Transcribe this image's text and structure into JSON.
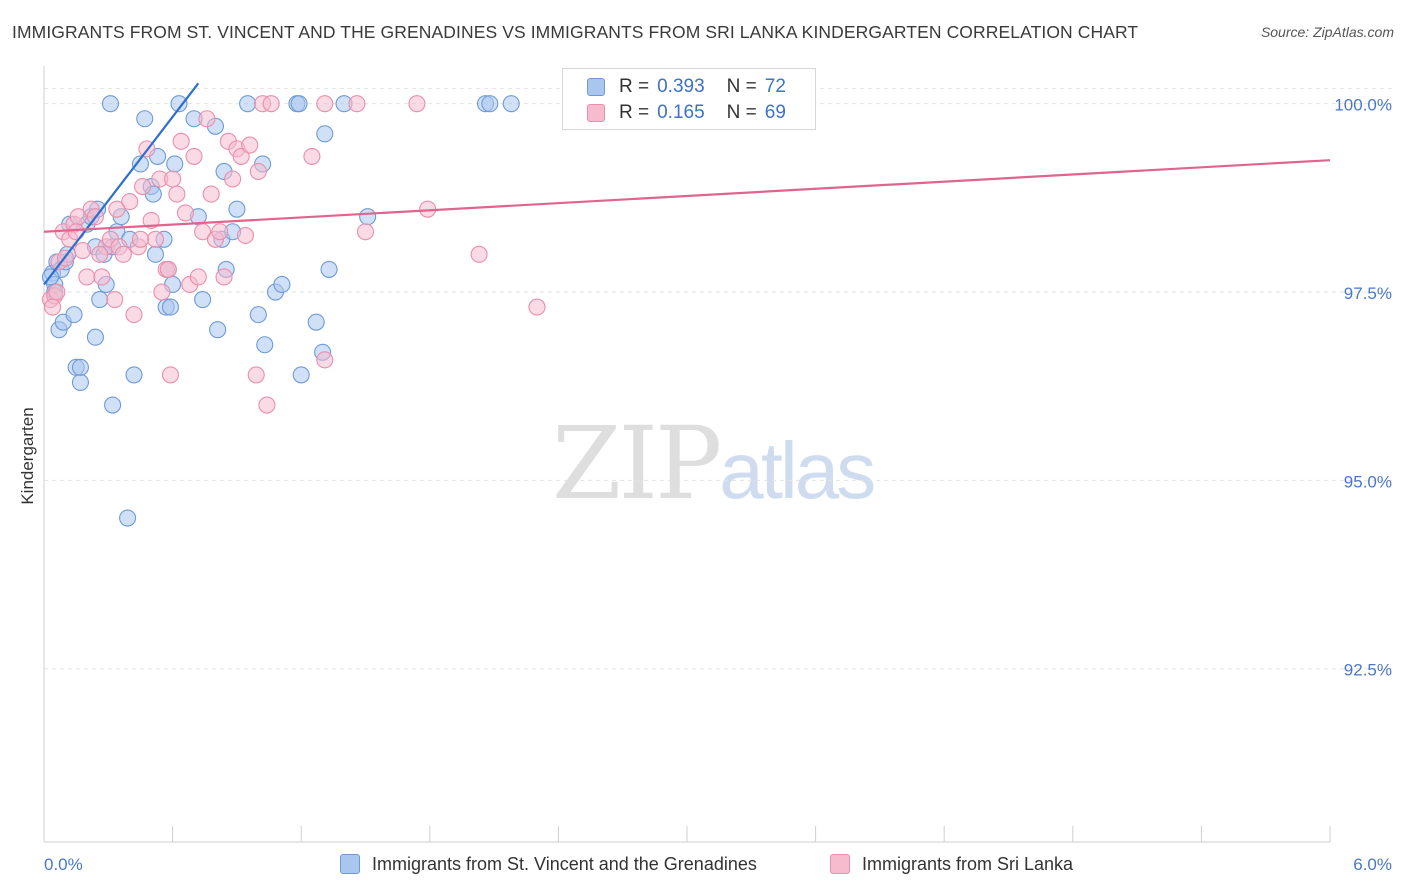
{
  "title": "IMMIGRANTS FROM ST. VINCENT AND THE GRENADINES VS IMMIGRANTS FROM SRI LANKA KINDERGARTEN CORRELATION CHART",
  "source": "Source: ZipAtlas.com",
  "watermark": {
    "zip": "ZIP",
    "atlas": "atlas"
  },
  "colors": {
    "blue_fill": "#a9c6ef",
    "blue_stroke": "#6f9ad8",
    "blue_line": "#2e6fcc",
    "pink_fill": "#f6bccd",
    "pink_stroke": "#e98fab",
    "pink_line": "#e0648d",
    "grid": "#e2e2e2",
    "axis_label": "#4a77c9"
  },
  "legend": {
    "rows": [
      {
        "r_label": "R =",
        "r_value": "0.393",
        "n_label": "N =",
        "n_value": "72"
      },
      {
        "r_label": "R =",
        "r_value": "0.165",
        "n_label": "N =",
        "n_value": "69"
      }
    ]
  },
  "chart_data": {
    "type": "scatter",
    "title": "IMMIGRANTS FROM ST. VINCENT AND THE GRENADINES VS IMMIGRANTS FROM SRI LANKA KINDERGARTEN CORRELATION CHART",
    "xlabel": "",
    "ylabel": "Kindergarten",
    "xlim": [
      0.0,
      6.0
    ],
    "ylim": [
      90.2,
      100.5
    ],
    "x_tick_labels": [
      "0.0%",
      "6.0%"
    ],
    "y_ticks": [
      92.5,
      95.0,
      97.5,
      100.0
    ],
    "y_tick_labels": [
      "92.5%",
      "95.0%",
      "97.5%",
      "100.0%"
    ],
    "grid": true,
    "series": [
      {
        "name": "Immigrants from St. Vincent and the Grenadines",
        "color": "blue",
        "R": 0.393,
        "N": 72,
        "trend": {
          "x": [
            0.0,
            0.72
          ],
          "y": [
            97.6,
            100.27
          ]
        },
        "points": [
          [
            0.04,
            97.75
          ],
          [
            0.05,
            97.6
          ],
          [
            0.06,
            97.9
          ],
          [
            0.07,
            97.0
          ],
          [
            0.08,
            97.8
          ],
          [
            0.09,
            97.1
          ],
          [
            0.1,
            97.9
          ],
          [
            0.12,
            98.4
          ],
          [
            0.14,
            97.2
          ],
          [
            0.15,
            96.5
          ],
          [
            0.17,
            96.3
          ],
          [
            0.2,
            98.4
          ],
          [
            0.22,
            98.5
          ],
          [
            0.24,
            98.1
          ],
          [
            0.24,
            96.9
          ],
          [
            0.25,
            98.6
          ],
          [
            0.26,
            97.4
          ],
          [
            0.28,
            98.0
          ],
          [
            0.29,
            97.6
          ],
          [
            0.31,
            100.0
          ],
          [
            0.32,
            98.1
          ],
          [
            0.32,
            96.0
          ],
          [
            0.34,
            98.3
          ],
          [
            0.36,
            98.5
          ],
          [
            0.4,
            98.2
          ],
          [
            0.42,
            96.4
          ],
          [
            0.45,
            99.2
          ],
          [
            0.47,
            99.8
          ],
          [
            0.5,
            98.9
          ],
          [
            0.51,
            98.8
          ],
          [
            0.52,
            98.0
          ],
          [
            0.53,
            99.3
          ],
          [
            0.56,
            98.2
          ],
          [
            0.57,
            97.3
          ],
          [
            0.58,
            97.8
          ],
          [
            0.59,
            97.3
          ],
          [
            0.6,
            97.6
          ],
          [
            0.61,
            99.2
          ],
          [
            0.63,
            100.0
          ],
          [
            0.7,
            99.8
          ],
          [
            0.72,
            98.5
          ],
          [
            0.74,
            97.4
          ],
          [
            0.8,
            99.7
          ],
          [
            0.81,
            97.0
          ],
          [
            0.83,
            98.2
          ],
          [
            0.84,
            99.1
          ],
          [
            0.85,
            97.8
          ],
          [
            0.88,
            98.3
          ],
          [
            0.9,
            98.6
          ],
          [
            0.95,
            100.0
          ],
          [
            1.0,
            97.2
          ],
          [
            1.02,
            99.2
          ],
          [
            1.03,
            96.8
          ],
          [
            1.08,
            97.5
          ],
          [
            1.11,
            97.6
          ],
          [
            1.18,
            100.0
          ],
          [
            1.19,
            100.0
          ],
          [
            1.2,
            96.4
          ],
          [
            1.27,
            97.1
          ],
          [
            1.3,
            96.7
          ],
          [
            1.31,
            99.6
          ],
          [
            1.33,
            97.8
          ],
          [
            1.4,
            100.0
          ],
          [
            1.51,
            98.5
          ],
          [
            2.06,
            100.0
          ],
          [
            2.08,
            100.0
          ],
          [
            2.18,
            100.0
          ],
          [
            0.03,
            97.7
          ],
          [
            0.05,
            97.5
          ],
          [
            0.11,
            98.0
          ],
          [
            0.39,
            94.5
          ],
          [
            0.17,
            96.5
          ]
        ]
      },
      {
        "name": "Immigrants from Sri Lanka",
        "color": "pink",
        "R": 0.165,
        "N": 69,
        "trend": {
          "x": [
            0.0,
            6.0
          ],
          "y": [
            98.3,
            99.25
          ]
        },
        "points": [
          [
            0.03,
            97.4
          ],
          [
            0.05,
            97.45
          ],
          [
            0.07,
            97.9
          ],
          [
            0.09,
            98.3
          ],
          [
            0.1,
            97.95
          ],
          [
            0.12,
            98.2
          ],
          [
            0.14,
            98.4
          ],
          [
            0.16,
            98.5
          ],
          [
            0.18,
            98.05
          ],
          [
            0.2,
            97.7
          ],
          [
            0.22,
            98.6
          ],
          [
            0.24,
            98.5
          ],
          [
            0.27,
            97.7
          ],
          [
            0.29,
            98.1
          ],
          [
            0.31,
            98.2
          ],
          [
            0.33,
            97.4
          ],
          [
            0.35,
            98.1
          ],
          [
            0.37,
            98.0
          ],
          [
            0.4,
            98.7
          ],
          [
            0.42,
            97.2
          ],
          [
            0.44,
            98.1
          ],
          [
            0.46,
            98.9
          ],
          [
            0.48,
            99.4
          ],
          [
            0.5,
            98.45
          ],
          [
            0.52,
            98.2
          ],
          [
            0.54,
            99.0
          ],
          [
            0.55,
            97.5
          ],
          [
            0.57,
            97.8
          ],
          [
            0.59,
            96.4
          ],
          [
            0.6,
            99.0
          ],
          [
            0.62,
            98.8
          ],
          [
            0.64,
            99.5
          ],
          [
            0.66,
            98.55
          ],
          [
            0.68,
            97.6
          ],
          [
            0.7,
            99.3
          ],
          [
            0.72,
            97.7
          ],
          [
            0.74,
            98.3
          ],
          [
            0.76,
            99.8
          ],
          [
            0.78,
            98.8
          ],
          [
            0.8,
            98.2
          ],
          [
            0.82,
            98.3
          ],
          [
            0.84,
            97.7
          ],
          [
            0.86,
            99.5
          ],
          [
            0.88,
            99.0
          ],
          [
            0.9,
            99.4
          ],
          [
            0.92,
            99.3
          ],
          [
            0.94,
            98.25
          ],
          [
            0.96,
            99.45
          ],
          [
            0.99,
            96.4
          ],
          [
            1.0,
            99.1
          ],
          [
            1.02,
            100.0
          ],
          [
            1.04,
            96.0
          ],
          [
            1.06,
            100.0
          ],
          [
            1.25,
            99.3
          ],
          [
            1.31,
            96.6
          ],
          [
            1.31,
            100.0
          ],
          [
            1.46,
            100.0
          ],
          [
            1.5,
            98.3
          ],
          [
            1.74,
            100.0
          ],
          [
            1.79,
            98.6
          ],
          [
            2.03,
            98.0
          ],
          [
            2.3,
            97.3
          ],
          [
            0.58,
            97.8
          ],
          [
            0.45,
            98.2
          ],
          [
            0.34,
            98.6
          ],
          [
            0.26,
            98.0
          ],
          [
            0.15,
            98.3
          ],
          [
            0.06,
            97.5
          ],
          [
            0.04,
            97.3
          ]
        ]
      }
    ]
  },
  "bottom_legend": [
    {
      "label": "Immigrants from St. Vincent and the Grenadines"
    },
    {
      "label": "Immigrants from Sri Lanka"
    }
  ]
}
